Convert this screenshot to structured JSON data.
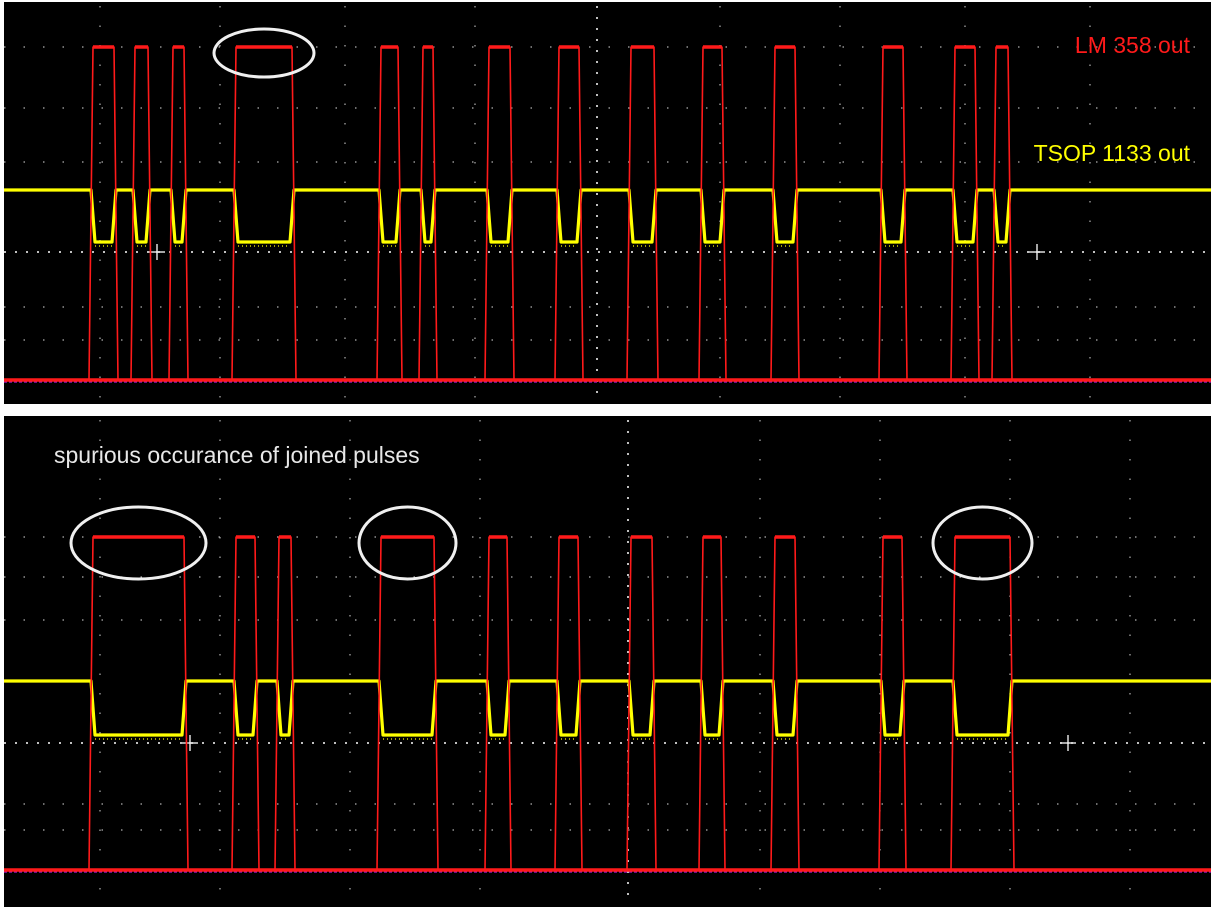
{
  "colors": {
    "background": "#000000",
    "separator": "#ffffff",
    "grid": "#b0b0b0",
    "lm358_trace": "#ff1a1a",
    "tsop_trace": "#ffff00",
    "reference": "#b21bd6",
    "highlight": "#f0f0f0"
  },
  "chart_data": [
    {
      "type": "line",
      "title": "",
      "annotations": {
        "lm358_label": "LM 358 out",
        "tsop_label": "TSOP 1133 out"
      },
      "series": [
        {
          "name": "LM 358 out",
          "pulses": [
            [
              93,
              114
            ],
            [
              135,
              148
            ],
            [
              173,
              184
            ],
            [
              236,
              292
            ],
            [
              381,
              398
            ],
            [
              423,
              433
            ],
            [
              489,
              510
            ],
            [
              559,
              579
            ],
            [
              631,
              654
            ],
            [
              703,
              722
            ],
            [
              775,
              795
            ],
            [
              883,
              903
            ],
            [
              955,
              975
            ],
            [
              996,
              1008
            ]
          ]
        },
        {
          "name": "TSOP 1133 out",
          "pulses": [
            [
              93,
              114
            ],
            [
              135,
              148
            ],
            [
              173,
              184
            ],
            [
              236,
              292
            ],
            [
              381,
              398
            ],
            [
              423,
              433
            ],
            [
              489,
              510
            ],
            [
              559,
              579
            ],
            [
              631,
              654
            ],
            [
              703,
              722
            ],
            [
              775,
              795
            ],
            [
              883,
              903
            ],
            [
              955,
              975
            ],
            [
              996,
              1008
            ]
          ]
        }
      ],
      "joined_pulse_indices": [
        3
      ]
    },
    {
      "type": "line",
      "title": "",
      "annotations": {
        "note": "spurious occurance of joined pulses"
      },
      "series": [
        {
          "name": "LM 358 out",
          "pulses": [
            [
              93,
              184
            ],
            [
              236,
              255
            ],
            [
              279,
              291
            ],
            [
              381,
              434
            ],
            [
              489,
              507
            ],
            [
              559,
              578
            ],
            [
              631,
              652
            ],
            [
              703,
              721
            ],
            [
              775,
              795
            ],
            [
              883,
              902
            ],
            [
              955,
              1010
            ]
          ]
        },
        {
          "name": "TSOP 1133 out",
          "pulses": [
            [
              93,
              184
            ],
            [
              236,
              255
            ],
            [
              279,
              291
            ],
            [
              381,
              434
            ],
            [
              489,
              507
            ],
            [
              559,
              578
            ],
            [
              631,
              652
            ],
            [
              703,
              721
            ],
            [
              775,
              795
            ],
            [
              883,
              902
            ],
            [
              955,
              1010
            ]
          ]
        }
      ],
      "joined_pulse_indices": [
        0,
        3,
        10
      ]
    }
  ]
}
